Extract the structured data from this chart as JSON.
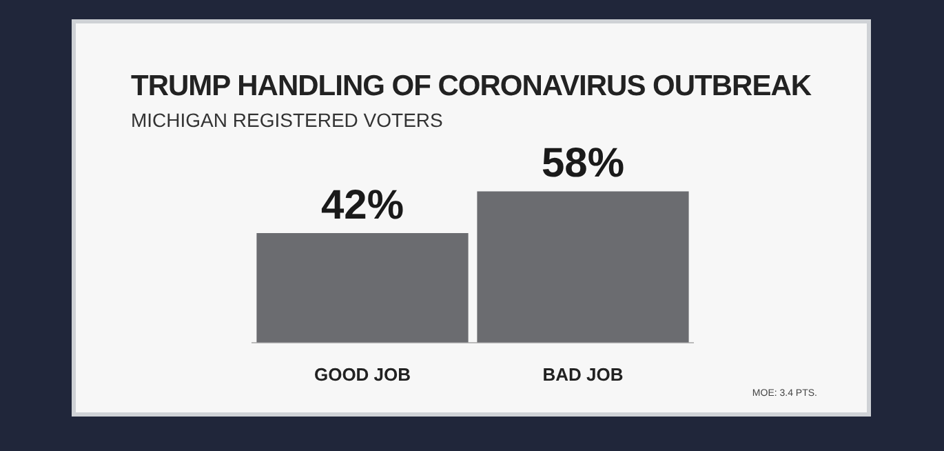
{
  "chart_data": {
    "type": "bar",
    "title": "TRUMP HANDLING OF CORONAVIRUS OUTBREAK",
    "subtitle": "MICHIGAN REGISTERED VOTERS",
    "categories": [
      "GOOD JOB",
      "BAD JOB"
    ],
    "values": [
      42,
      58
    ],
    "color": "#6b6c70",
    "value_labels": [
      "42%",
      "58%"
    ],
    "annotations": [
      "MOE: 3.4 PTS."
    ]
  }
}
